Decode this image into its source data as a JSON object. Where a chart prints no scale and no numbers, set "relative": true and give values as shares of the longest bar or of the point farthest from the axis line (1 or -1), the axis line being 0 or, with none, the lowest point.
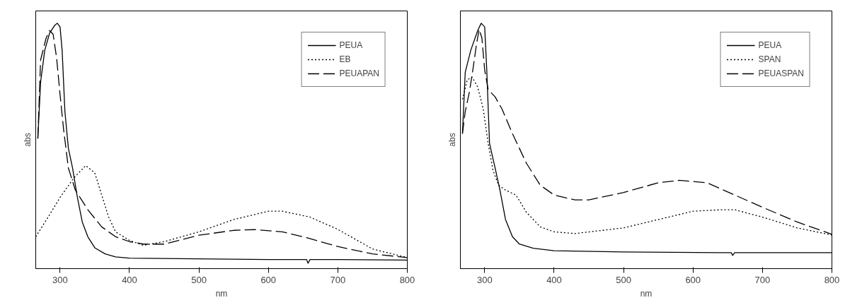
{
  "chart_data": [
    {
      "type": "line",
      "relative": true,
      "xlabel": "nm",
      "ylabel": "abs",
      "xlim": [
        265,
        800
      ],
      "xticks": [
        300,
        400,
        500,
        600,
        700,
        800
      ],
      "legend": "top right",
      "grid": false,
      "series": [
        {
          "name": "PEUA",
          "color": "#000000",
          "line_style": "solid",
          "x": [
            268,
            272,
            278,
            285,
            292,
            296,
            300,
            303,
            307,
            312,
            318,
            325,
            332,
            340,
            350,
            365,
            380,
            400,
            500,
            600,
            655,
            657,
            660,
            700,
            800
          ],
          "values": [
            0.53,
            0.76,
            0.89,
            0.96,
            0.99,
            1.0,
            0.985,
            0.89,
            0.64,
            0.49,
            0.41,
            0.29,
            0.19,
            0.13,
            0.085,
            0.06,
            0.048,
            0.043,
            0.04,
            0.037,
            0.037,
            0.022,
            0.037,
            0.037,
            0.035
          ]
        },
        {
          "name": "EB",
          "color": "#000000",
          "line_style": "dotted",
          "x": [
            265,
            285,
            300,
            320,
            337,
            350,
            360,
            370,
            380,
            400,
            420,
            450,
            500,
            550,
            600,
            620,
            660,
            700,
            750,
            800
          ],
          "values": [
            0.13,
            0.22,
            0.29,
            0.37,
            0.42,
            0.39,
            0.3,
            0.21,
            0.15,
            0.115,
            0.095,
            0.11,
            0.15,
            0.2,
            0.234,
            0.234,
            0.21,
            0.16,
            0.08,
            0.045
          ]
        },
        {
          "name": "PEUAPAN",
          "color": "#000000",
          "line_style": "dashed",
          "x": [
            268,
            272,
            280,
            285,
            290,
            295,
            300,
            305,
            312,
            322,
            340,
            360,
            380,
            400,
            420,
            450,
            500,
            550,
            580,
            620,
            655,
            700,
            750,
            800
          ],
          "values": [
            0.53,
            0.85,
            0.94,
            0.97,
            0.955,
            0.86,
            0.71,
            0.57,
            0.41,
            0.32,
            0.24,
            0.17,
            0.13,
            0.11,
            0.1,
            0.1,
            0.136,
            0.156,
            0.159,
            0.15,
            0.126,
            0.09,
            0.06,
            0.045
          ]
        }
      ]
    },
    {
      "type": "line",
      "relative": true,
      "xlabel": "nm",
      "ylabel": "abs",
      "xlim": [
        265,
        800
      ],
      "xticks": [
        300,
        400,
        500,
        600,
        700,
        800
      ],
      "legend": "top right",
      "grid": false,
      "series": [
        {
          "name": "PEUA",
          "color": "#000000",
          "line_style": "solid",
          "x": [
            268,
            272,
            280,
            290,
            295,
            300,
            303,
            307,
            315,
            322,
            330,
            340,
            350,
            370,
            400,
            500,
            655,
            657,
            660,
            800
          ],
          "values": [
            0.55,
            0.8,
            0.89,
            0.97,
            1.0,
            0.985,
            0.81,
            0.51,
            0.41,
            0.32,
            0.2,
            0.13,
            0.1,
            0.083,
            0.073,
            0.068,
            0.065,
            0.054,
            0.065,
            0.065
          ]
        },
        {
          "name": "SPAN",
          "color": "#000000",
          "line_style": "dotted",
          "x": [
            268,
            275,
            282,
            290,
            298,
            305,
            312,
            320,
            330,
            345,
            360,
            380,
            400,
            430,
            500,
            550,
            600,
            640,
            660,
            700,
            750,
            800
          ],
          "values": [
            0.69,
            0.77,
            0.78,
            0.74,
            0.65,
            0.51,
            0.4,
            0.34,
            0.32,
            0.3,
            0.23,
            0.17,
            0.15,
            0.143,
            0.166,
            0.2,
            0.234,
            0.24,
            0.24,
            0.21,
            0.166,
            0.137
          ]
        },
        {
          "name": "PEUASPAN",
          "color": "#000000",
          "line_style": "dashed",
          "x": [
            268,
            272,
            278,
            283,
            288,
            292,
            296,
            300,
            305,
            315,
            325,
            340,
            360,
            380,
            400,
            430,
            450,
            500,
            550,
            580,
            620,
            660,
            700,
            750,
            800
          ],
          "values": [
            0.55,
            0.64,
            0.72,
            0.81,
            0.91,
            0.975,
            0.94,
            0.81,
            0.73,
            0.7,
            0.65,
            0.55,
            0.43,
            0.34,
            0.3,
            0.28,
            0.28,
            0.31,
            0.35,
            0.36,
            0.35,
            0.3,
            0.25,
            0.19,
            0.14
          ]
        }
      ]
    }
  ]
}
